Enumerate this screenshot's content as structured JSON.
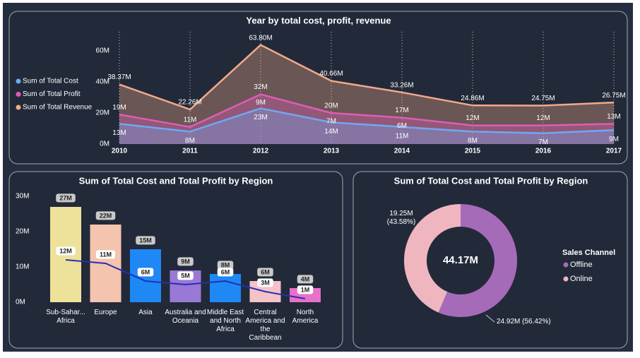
{
  "chart_data": [
    {
      "type": "area",
      "title": "Year by total cost, profit, revenue",
      "categories": [
        "2010",
        "2011",
        "2012",
        "2013",
        "2014",
        "2015",
        "2016",
        "2017"
      ],
      "series": [
        {
          "name": "Sum of Total Cost",
          "color": "#6fa8f5",
          "values": [
            13,
            8,
            23,
            14,
            11,
            8,
            7,
            9
          ],
          "value_labels": [
            "13M",
            "8M",
            "23M",
            "14M",
            "11M",
            "8M",
            "7M",
            "9M"
          ]
        },
        {
          "name": "Sum of Total Profit",
          "color": "#e05cb8",
          "values": [
            19,
            11,
            32,
            20,
            17,
            12,
            12,
            13
          ],
          "value_labels": [
            "19M",
            "11M",
            "32M",
            "20M",
            "17M",
            "12M",
            "12M",
            "13M"
          ]
        },
        {
          "name": "Sum of Total Revenue",
          "color": "#f2a98a",
          "values": [
            38.37,
            22.26,
            63.8,
            40.66,
            33.26,
            24.86,
            24.75,
            26.75
          ],
          "value_labels": [
            "38.37M",
            "22.26M",
            "63.80M",
            "40.66M",
            "33.26M",
            "24.86M",
            "24.75M",
            "26.75M"
          ]
        }
      ],
      "annotations": [
        {
          "x": "2012",
          "text": "9M"
        },
        {
          "x": "2013",
          "text": "7M"
        },
        {
          "x": "2014",
          "text": "6M"
        }
      ],
      "ylim": [
        0,
        70
      ],
      "yticks": [
        {
          "value": 0,
          "label": "0M"
        },
        {
          "value": 20,
          "label": "20M"
        },
        {
          "value": 40,
          "label": "40M"
        },
        {
          "value": 60,
          "label": "60M"
        }
      ],
      "grid": "x",
      "legend": "left"
    },
    {
      "type": "bar",
      "title": "Sum of Total Cost and Total Profit by Region",
      "categories": [
        "Sub-Sahar... Africa",
        "Europe",
        "Asia",
        "Australia and Oceania",
        "Middle East and North Africa",
        "Central America and the Caribbean",
        "North America"
      ],
      "series": [
        {
          "type": "bar",
          "colors": [
            "#eee19a",
            "#f5c4ae",
            "#1e88f5",
            "#9a78d6",
            "#1e88f5",
            "#f5c2c8",
            "#e870c8"
          ],
          "values": [
            27,
            22,
            15,
            9,
            8,
            6,
            4
          ],
          "value_labels": [
            "27M",
            "22M",
            "15M",
            "9M",
            "8M",
            "6M",
            "4M"
          ]
        },
        {
          "type": "line",
          "color": "#2230b4",
          "values": [
            12,
            11,
            6,
            5,
            6,
            3,
            1
          ],
          "value_labels": [
            "12M",
            "11M",
            "6M",
            "5M",
            "6M",
            "3M",
            "1M"
          ]
        }
      ],
      "ylim": [
        0,
        30
      ],
      "yticks": [
        {
          "value": 0,
          "label": "0M"
        },
        {
          "value": 10,
          "label": "10M"
        },
        {
          "value": 20,
          "label": "20M"
        },
        {
          "value": 30,
          "label": "30M"
        }
      ]
    },
    {
      "type": "donut",
      "title": "Sum of Total Cost and Total Profit by Region",
      "categories": [
        "Offline",
        "Online"
      ],
      "values": [
        24.92,
        19.25
      ],
      "value_labels": [
        "24.92M (56.42%)",
        "19.25M (43.58%)"
      ],
      "colors": [
        "#a66bb8",
        "#f0b6c0"
      ],
      "center_label": "44.17M",
      "legend_title": "Sales Channel",
      "legend": "right"
    }
  ]
}
